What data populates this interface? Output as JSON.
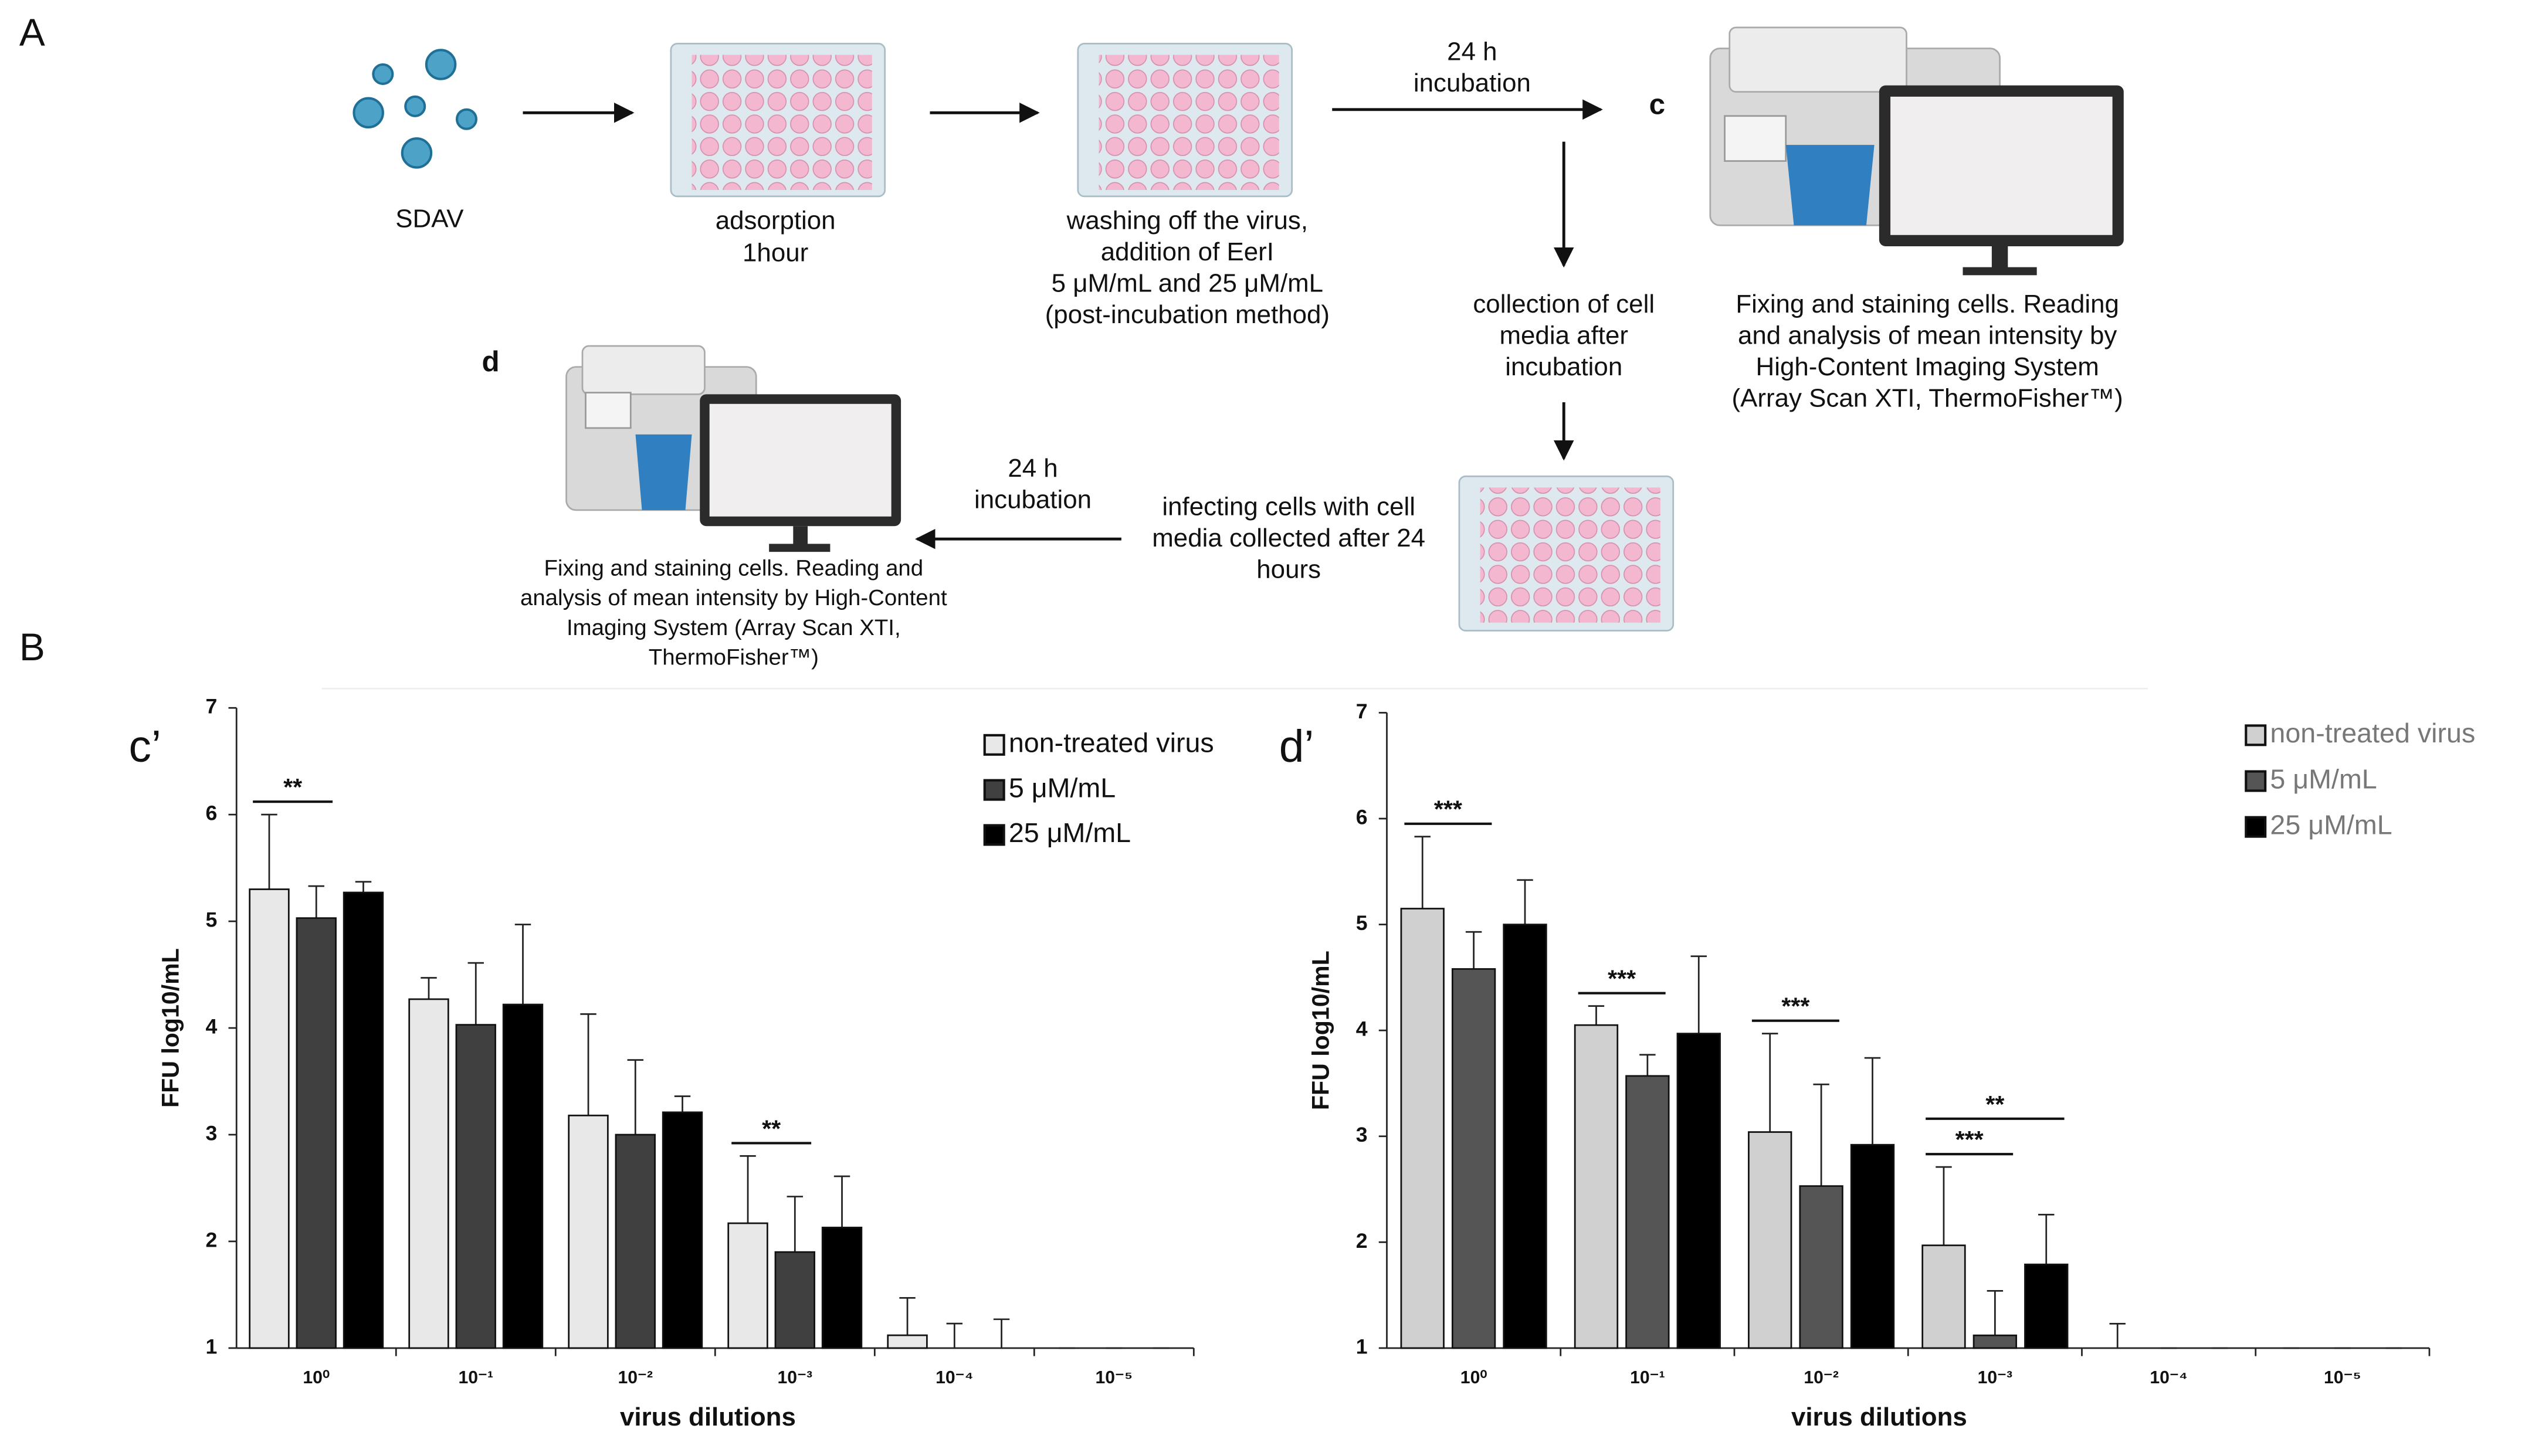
{
  "panel_labels": [
    "A",
    "B"
  ],
  "diagram": {
    "sdav": [
      "SDAV"
    ],
    "adsorption": [
      "adsorption",
      "1hour"
    ],
    "washing": [
      "washing off the virus,",
      "addition of  EerI",
      "5 μM/mL and 25 μM/mL",
      "(post-incubation method)"
    ],
    "incubation_1": [
      "24 h",
      "incubation"
    ],
    "c_label": "c",
    "c_text": [
      "Fixing and staining cells. Reading",
      "and analysis of mean intensity by",
      "High-Content Imaging System",
      "(Array Scan XTI, ThermoFisher™)"
    ],
    "collection": [
      "collection of cell",
      "media after",
      "incubation"
    ],
    "infecting": [
      "infecting cells with cell",
      "media collected after 24",
      "hours"
    ],
    "incubation_2": [
      "24 h",
      "incubation"
    ],
    "d_label": "d",
    "d_text": [
      "Fixing and staining cells. Reading and",
      "analysis of mean intensity by High-Content",
      "Imaging System (Array Scan XTI,",
      "ThermoFisher™)"
    ]
  },
  "chart_data": [
    {
      "type": "bar",
      "title": "c’",
      "y_label": "FFU log10/mL",
      "x_label": "virus dilutions",
      "categories": [
        "10⁰",
        "10⁻¹",
        "10⁻²",
        "10⁻³",
        "10⁻⁴",
        "10⁻⁵"
      ],
      "ylim": [
        1,
        7
      ],
      "yticks": [
        1,
        2,
        3,
        4,
        5,
        6,
        7
      ],
      "series": [
        {
          "name": "non-treated virus",
          "color": "#e8e8e8",
          "values": [
            5.3,
            4.27,
            3.18,
            2.17,
            1.12,
            1.0
          ],
          "errors": [
            0.7,
            0.2,
            0.95,
            0.63,
            0.35,
            0
          ]
        },
        {
          "name": "5 μM/mL",
          "color": "#404040",
          "values": [
            5.03,
            4.03,
            3.0,
            1.9,
            1.0,
            1.0
          ],
          "errors": [
            0.3,
            0.58,
            0.7,
            0.52,
            0.23,
            0
          ]
        },
        {
          "name": "25 μM/mL",
          "color": "#000000",
          "values": [
            5.27,
            4.22,
            3.21,
            2.13,
            1.0,
            1.0
          ],
          "errors": [
            0.1,
            0.75,
            0.15,
            0.48,
            0.27,
            0
          ]
        }
      ],
      "annotations": [
        "**",
        "**"
      ]
    },
    {
      "type": "bar",
      "title": "d’",
      "y_label": "FFU log10/mL",
      "x_label": "virus dilutions",
      "categories": [
        "10⁰",
        "10⁻¹",
        "10⁻²",
        "10⁻³",
        "10⁻⁴",
        "10⁻⁵"
      ],
      "ylim": [
        1,
        7
      ],
      "yticks": [
        1,
        2,
        3,
        4,
        5,
        6,
        7
      ],
      "series": [
        {
          "name": "non-treated virus",
          "color": "#d0d0d0",
          "values": [
            5.15,
            4.05,
            3.04,
            1.97,
            1.0,
            1.0
          ],
          "errors": [
            0.68,
            0.18,
            0.93,
            0.74,
            0.23,
            0
          ]
        },
        {
          "name": "5 μM/mL",
          "color": "#555555",
          "values": [
            4.58,
            3.57,
            2.53,
            1.12,
            1.0,
            1.0
          ],
          "errors": [
            0.35,
            0.2,
            0.96,
            0.42,
            0,
            0
          ]
        },
        {
          "name": "25 μM/mL",
          "color": "#000000",
          "values": [
            5.0,
            3.97,
            2.92,
            1.79,
            1.0,
            1.0
          ],
          "errors": [
            0.42,
            0.73,
            0.82,
            0.47,
            0,
            0
          ]
        }
      ],
      "annotations": [
        "***",
        "***",
        "***",
        "***",
        "**"
      ]
    }
  ]
}
